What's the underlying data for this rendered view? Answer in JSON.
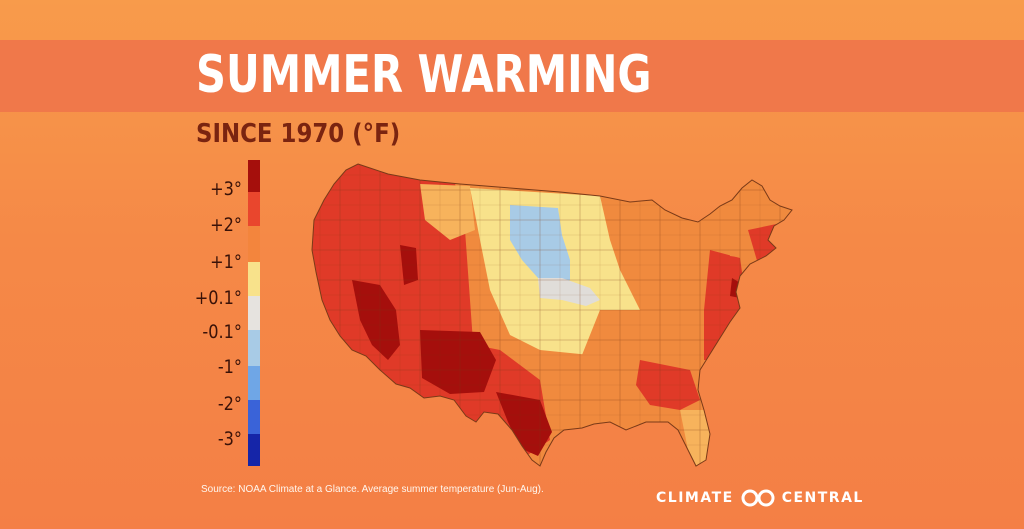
{
  "header": {
    "title": "SUMMER WARMING",
    "subtitle": "SINCE 1970 (°F)"
  },
  "legend": {
    "labels": [
      "+3°",
      "+2°",
      "+1°",
      "+0.1°",
      "-0.1°",
      "-1°",
      "-2°",
      "-3°"
    ],
    "colors": [
      "#a50f0c",
      "#e9462d",
      "#f3853d",
      "#f8e28b",
      "#e6e3df",
      "#a8cbe6",
      "#6fa6e6",
      "#3a63d8",
      "#1525a8"
    ]
  },
  "map": {
    "colors": {
      "outline": "#7a3a18",
      "darkest_red": "#a50f0c",
      "red": "#e03a28",
      "orange": "#f08a3e",
      "light_orange": "#f7b35c",
      "yellow": "#f8e28b",
      "gray": "#e0ddd9",
      "light_blue": "#a8cbe6"
    }
  },
  "footer": {
    "source": "Source: NOAA Climate at a Glance. Average summer temperature (Jun-Aug).",
    "logo_left": "CLIMATE",
    "logo_right": "CENTRAL"
  }
}
